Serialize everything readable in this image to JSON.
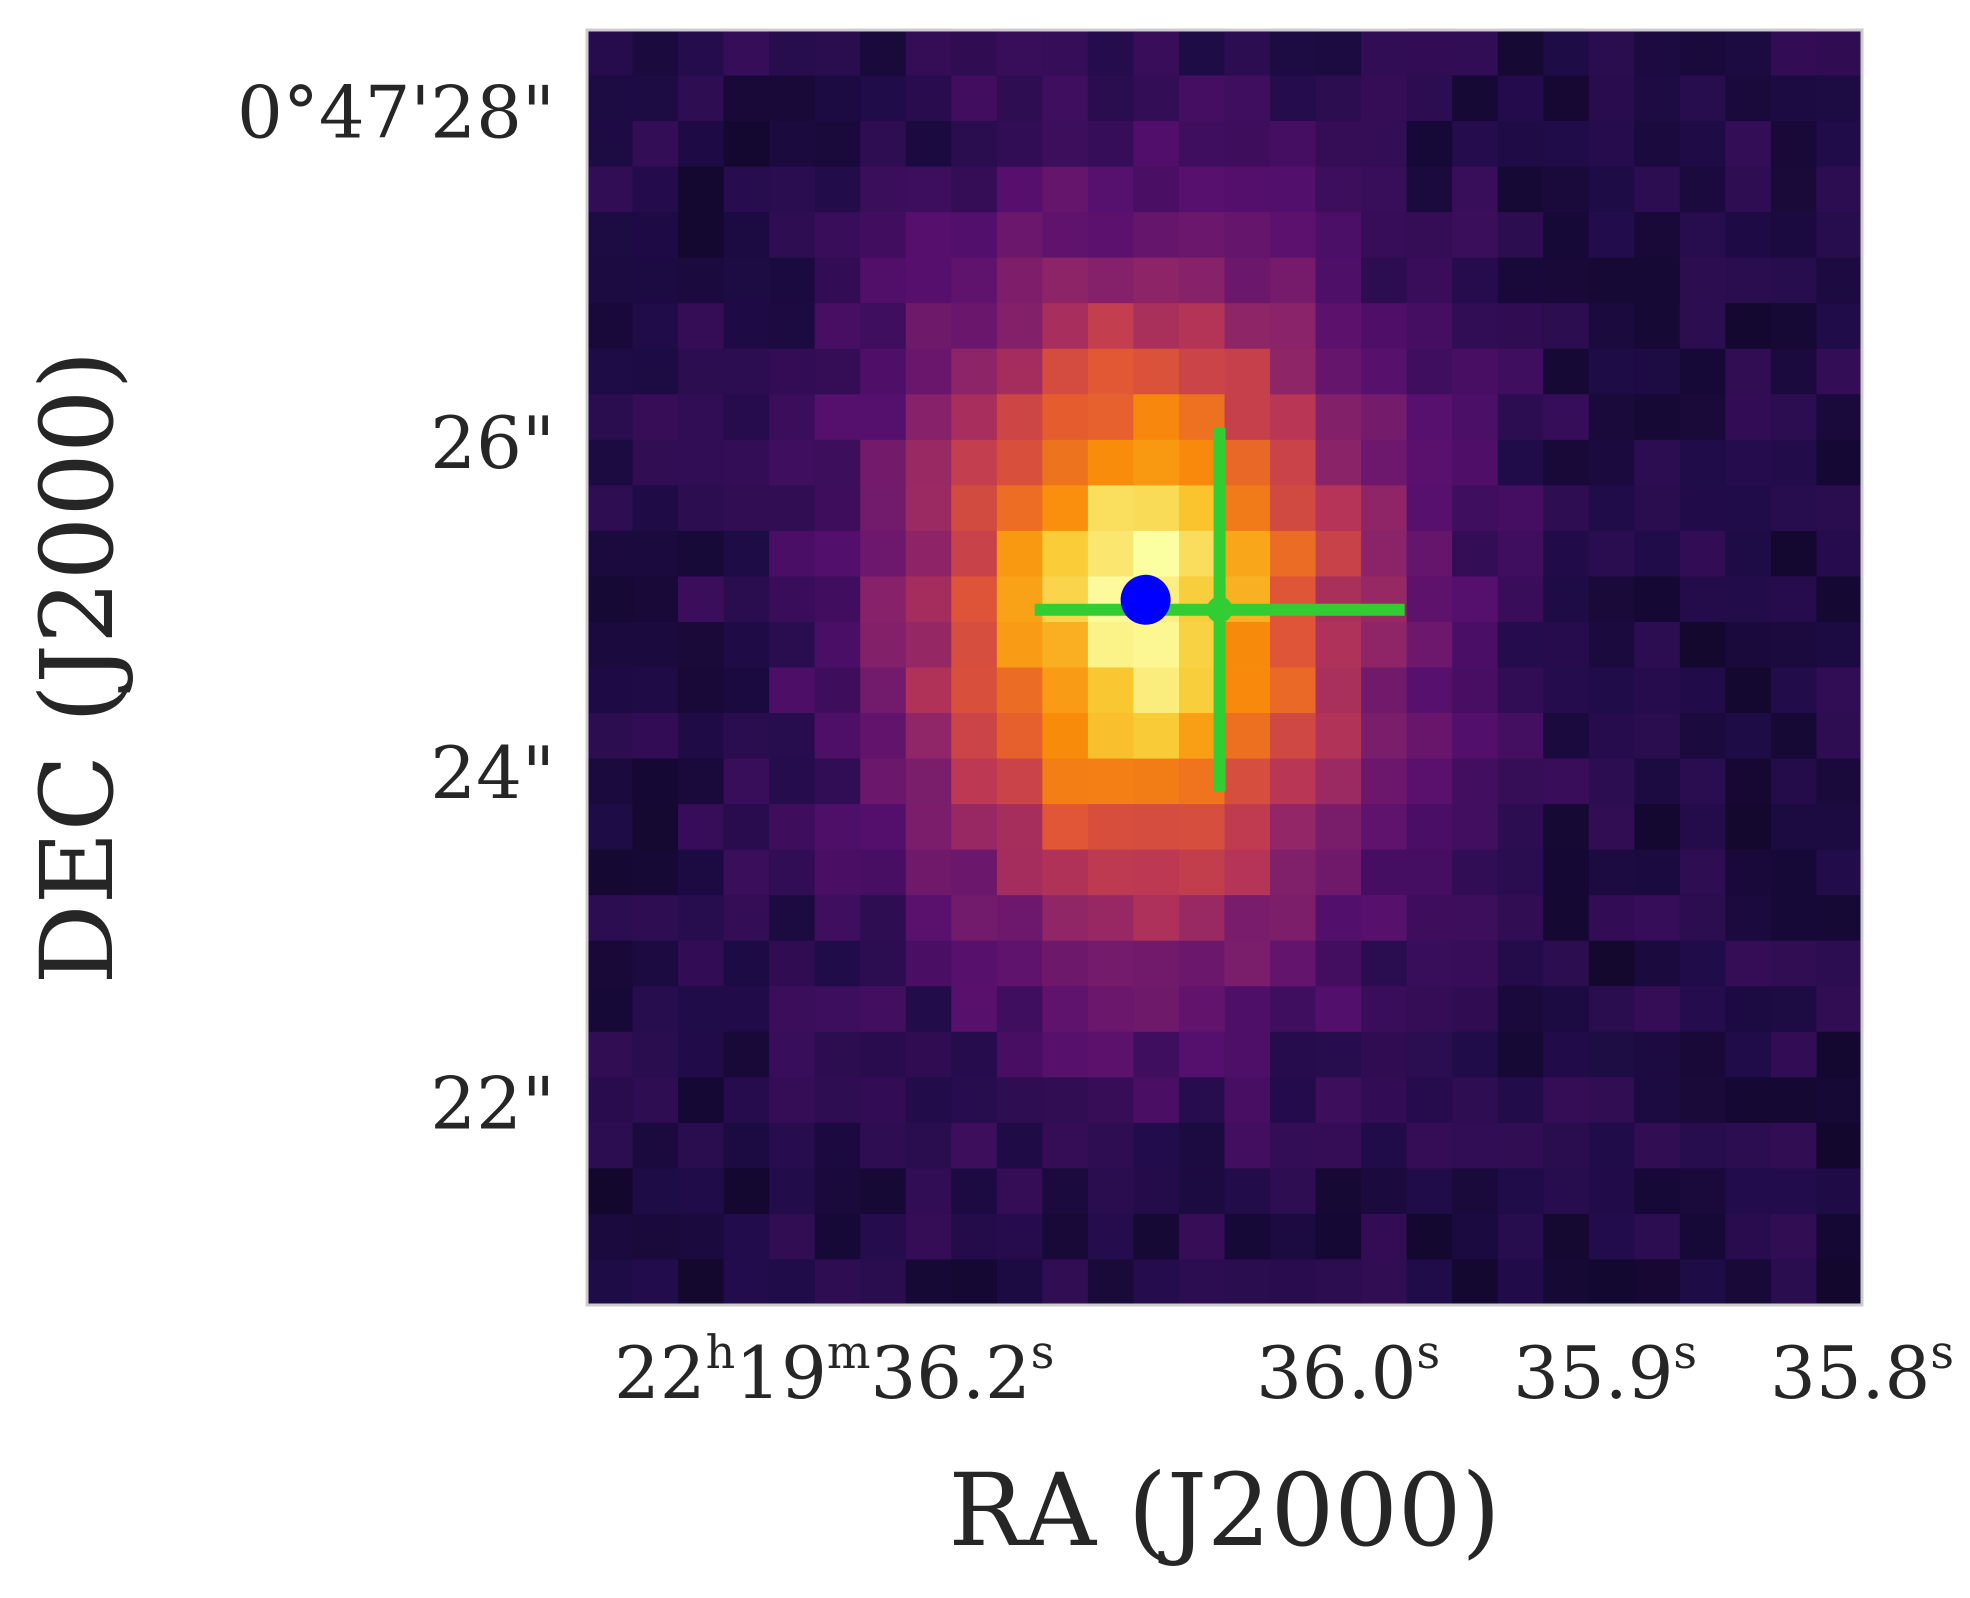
{
  "chart_data": {
    "type": "heatmap",
    "title": "",
    "xlabel": "RA (J2000)",
    "ylabel": "DEC (J2000)",
    "colormap": "inferno",
    "grid": false,
    "legend": "none",
    "x_ticks": [
      {
        "h": "22",
        "h_unit": "h",
        "m": "19",
        "m_unit": "m",
        "s": "36.2",
        "s_unit": "s",
        "ra_sec": 36.2
      },
      {
        "s": "36.0",
        "s_unit": "s",
        "ra_sec": 36.0
      },
      {
        "s": "35.9",
        "s_unit": "s",
        "ra_sec": 35.9
      },
      {
        "s": "35.8",
        "s_unit": "s",
        "ra_sec": 35.8
      }
    ],
    "y_ticks": [
      {
        "label": "0°47'28\"",
        "dec_arcsec": 28
      },
      {
        "label": "26\"",
        "dec_arcsec": 26
      },
      {
        "label": "24\"",
        "dec_arcsec": 24
      },
      {
        "label": "22\"",
        "dec_arcsec": 22
      }
    ],
    "x_range_ra_sec": [
      36.2962,
      35.8
    ],
    "y_range_dec_arcsec": [
      20.78,
      28.5
    ],
    "source": {
      "x": 36.0788,
      "y": 25.05,
      "color": "#0000ff"
    },
    "fit": {
      "x": 36.05,
      "y": 24.99,
      "x_err": 0.072,
      "y_err": 1.1,
      "color": "#32cd32"
    },
    "image": {
      "grid": 28,
      "peak_ra_sec": 36.08,
      "peak_dec_arcsec": 25.0,
      "sigma_x_ra_sec": 0.06,
      "sigma_y_arcsec": 1.3,
      "background": 0.13,
      "amplitude": 0.85,
      "noise": 0.05
    }
  }
}
